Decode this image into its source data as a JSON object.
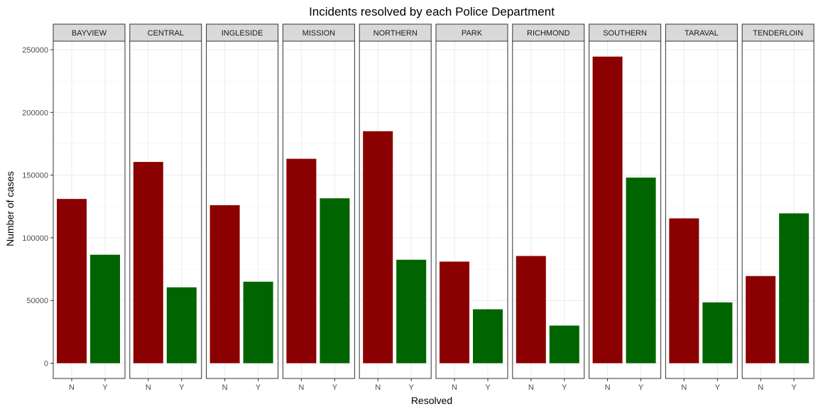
{
  "chart_data": {
    "type": "bar",
    "title": "Incidents resolved by each Police Department",
    "xlabel": "Resolved",
    "ylabel": "Number of cases",
    "categories": [
      "N",
      "Y"
    ],
    "ylim": [
      0,
      262000
    ],
    "yticks": [
      0,
      50000,
      100000,
      150000,
      200000,
      250000
    ],
    "ytick_labels": [
      "0",
      "50000",
      "100000",
      "150000",
      "200000",
      "250000"
    ],
    "grid": true,
    "colors": {
      "N": "#8b0000",
      "Y": "#006400"
    },
    "panels": [
      {
        "name": "BAYVIEW",
        "values": [
          131000,
          86500
        ]
      },
      {
        "name": "CENTRAL",
        "values": [
          160500,
          60500
        ]
      },
      {
        "name": "INGLESIDE",
        "values": [
          126000,
          65000
        ]
      },
      {
        "name": "MISSION",
        "values": [
          163000,
          131500
        ]
      },
      {
        "name": "NORTHERN",
        "values": [
          185000,
          82500
        ]
      },
      {
        "name": "PARK",
        "values": [
          81000,
          43000
        ]
      },
      {
        "name": "RICHMOND",
        "values": [
          85500,
          30000
        ]
      },
      {
        "name": "SOUTHERN",
        "values": [
          244500,
          148000
        ]
      },
      {
        "name": "TARAVAL",
        "values": [
          115500,
          48500
        ]
      },
      {
        "name": "TENDERLOIN",
        "values": [
          69500,
          119500
        ]
      }
    ]
  }
}
